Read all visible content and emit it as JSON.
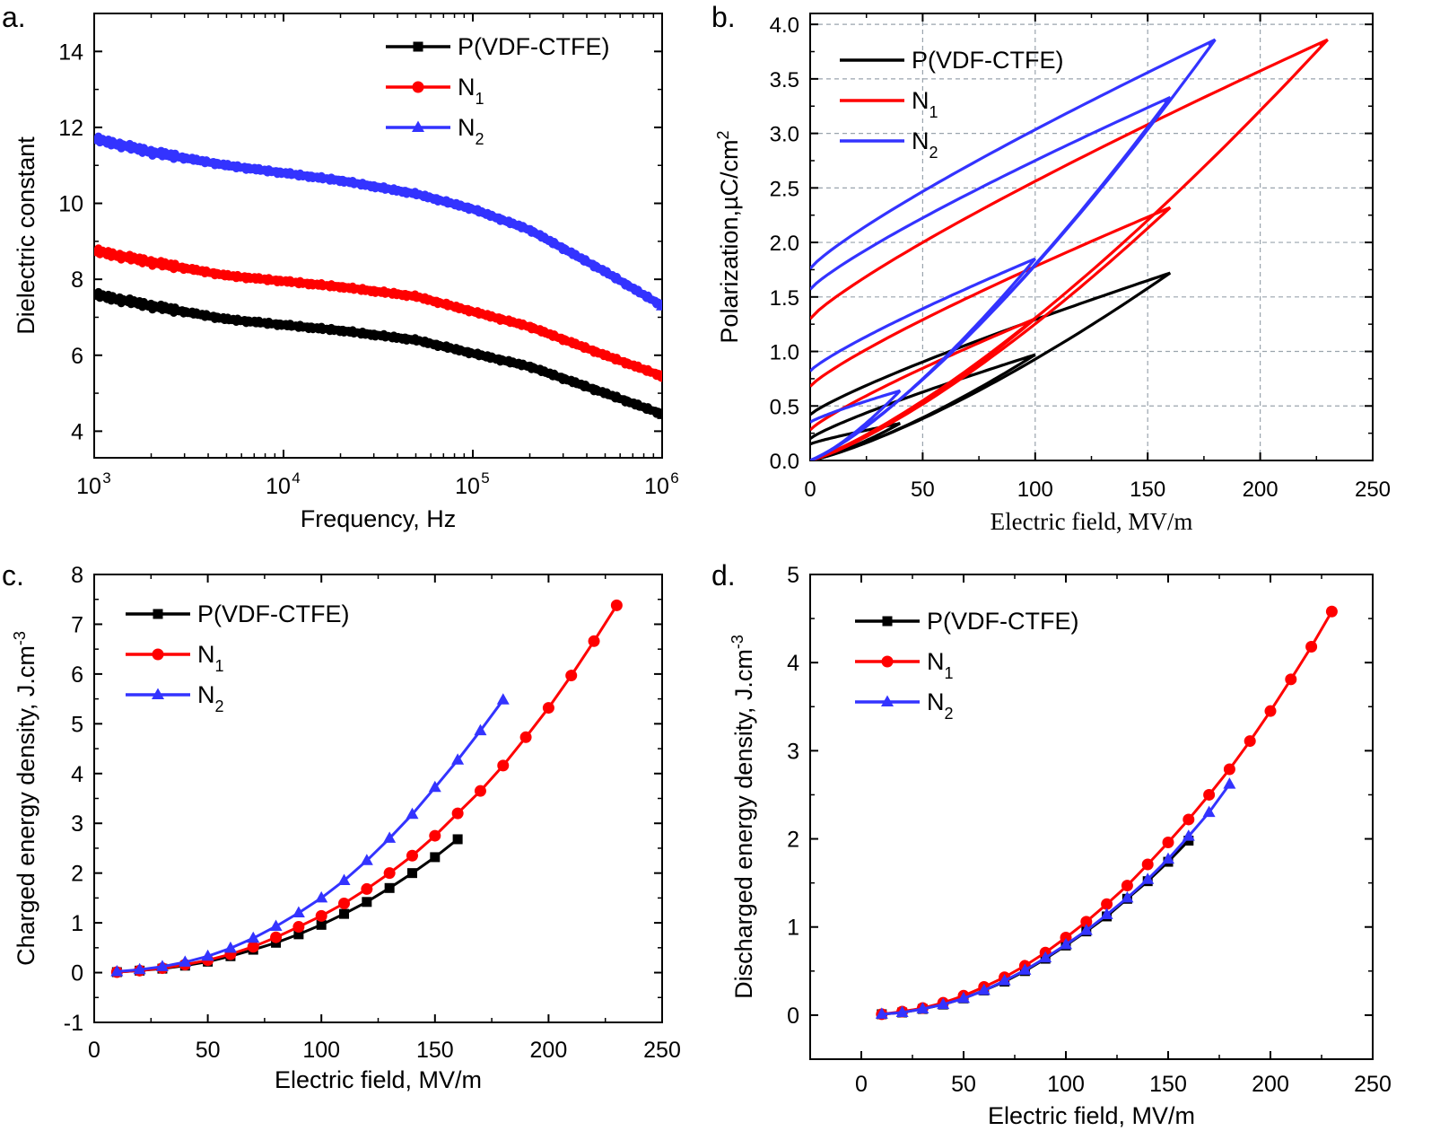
{
  "chart_data": [
    {
      "panel_label": "a.",
      "type": "line",
      "xscale": "log",
      "xlabel": "Frequency, Hz",
      "ylabel": "Dielectric constant",
      "xlim": [
        1000,
        1000000
      ],
      "ylim": [
        3.3,
        15
      ],
      "yticks": [
        "4",
        "6",
        "8",
        "10",
        "12",
        "14"
      ],
      "xticks": [
        {
          "base": "10",
          "exp": "3"
        },
        {
          "base": "10",
          "exp": "4"
        },
        {
          "base": "10",
          "exp": "5"
        },
        {
          "base": "10",
          "exp": "6"
        }
      ],
      "grid": false,
      "legend_position": "top-right",
      "series": [
        {
          "name": "P(VDF-CTFE)",
          "sub": "",
          "color": "#000000",
          "marker": "square",
          "x": [
            1000,
            2000,
            5000,
            10000,
            20000,
            50000,
            100000,
            200000,
            500000,
            1000000
          ],
          "y": [
            7.6,
            7.3,
            6.95,
            6.8,
            6.65,
            6.4,
            6.05,
            5.7,
            5.0,
            4.45
          ]
        },
        {
          "name": "N",
          "sub": "1",
          "color": "#ff0000",
          "marker": "circle",
          "x": [
            1000,
            2000,
            5000,
            10000,
            20000,
            50000,
            100000,
            200000,
            500000,
            1000000
          ],
          "y": [
            8.75,
            8.45,
            8.1,
            7.95,
            7.8,
            7.55,
            7.15,
            6.75,
            6.0,
            5.45
          ]
        },
        {
          "name": "N",
          "sub": "2",
          "color": "#3333ff",
          "marker": "triangle",
          "x": [
            1000,
            2000,
            5000,
            10000,
            20000,
            50000,
            100000,
            200000,
            500000,
            1000000
          ],
          "y": [
            11.7,
            11.35,
            11.0,
            10.8,
            10.6,
            10.25,
            9.85,
            9.3,
            8.2,
            7.3
          ]
        }
      ]
    },
    {
      "panel_label": "b.",
      "type": "line",
      "xlabel": "Electric field, MV/m",
      "ylabel": "Polarization,µC/cm",
      "ylabel_sup": "2",
      "xlim": [
        0,
        250
      ],
      "ylim": [
        0,
        4.1
      ],
      "xticks": [
        "0",
        "50",
        "100",
        "150",
        "200",
        "250"
      ],
      "yticks": [
        "0.0",
        "0.5",
        "1.0",
        "1.5",
        "2.0",
        "2.5",
        "3.0",
        "3.5",
        "4.0"
      ],
      "grid": true,
      "legend_position": "top-left",
      "series": [
        {
          "name": "P(VDF-CTFE)",
          "sub": "",
          "color": "#000000",
          "loops": [
            {
              "emax": 40,
              "pmax": 0.34,
              "pr": 0.15
            },
            {
              "emax": 100,
              "pmax": 0.97,
              "pr": 0.2
            },
            {
              "emax": 160,
              "pmax": 1.72,
              "pr": 0.42
            }
          ]
        },
        {
          "name": "N",
          "sub": "1",
          "color": "#ff0000",
          "loops": [
            {
              "emax": 100,
              "pmax": 1.3,
              "pr": 0.28
            },
            {
              "emax": 160,
              "pmax": 2.32,
              "pr": 0.68
            },
            {
              "emax": 230,
              "pmax": 3.86,
              "pr": 1.3
            }
          ]
        },
        {
          "name": "N",
          "sub": "2",
          "color": "#3333ff",
          "loops": [
            {
              "emax": 40,
              "pmax": 0.64,
              "pr": 0.35
            },
            {
              "emax": 100,
              "pmax": 1.85,
              "pr": 0.82
            },
            {
              "emax": 160,
              "pmax": 3.33,
              "pr": 1.57
            },
            {
              "emax": 180,
              "pmax": 3.86,
              "pr": 1.76
            }
          ]
        }
      ]
    },
    {
      "panel_label": "c.",
      "type": "line",
      "xlabel": "Electric field, MV/m",
      "ylabel": "Charged energy density,  J.cm",
      "ylabel_sup": "-3",
      "xlim": [
        0,
        250
      ],
      "ylim": [
        -1,
        8
      ],
      "xticks": [
        "0",
        "50",
        "100",
        "150",
        "200",
        "250"
      ],
      "yticks": [
        "-1",
        "0",
        "1",
        "2",
        "3",
        "4",
        "5",
        "6",
        "7",
        "8"
      ],
      "grid": false,
      "legend_position": "top-left",
      "series": [
        {
          "name": "P(VDF-CTFE)",
          "sub": "",
          "color": "#000000",
          "marker": "square",
          "x": [
            10,
            20,
            30,
            40,
            50,
            60,
            70,
            80,
            90,
            100,
            110,
            120,
            130,
            140,
            150,
            160
          ],
          "y": [
            0.01,
            0.04,
            0.08,
            0.14,
            0.22,
            0.33,
            0.46,
            0.6,
            0.77,
            0.96,
            1.18,
            1.42,
            1.7,
            2.0,
            2.32,
            2.68
          ]
        },
        {
          "name": "N",
          "sub": "1",
          "color": "#ff0000",
          "marker": "circle",
          "x": [
            10,
            20,
            30,
            40,
            50,
            60,
            70,
            80,
            90,
            100,
            110,
            120,
            130,
            140,
            150,
            160,
            170,
            180,
            190,
            200,
            210,
            220,
            230
          ],
          "y": [
            0.01,
            0.04,
            0.09,
            0.16,
            0.25,
            0.37,
            0.52,
            0.71,
            0.92,
            1.14,
            1.39,
            1.68,
            2.0,
            2.35,
            2.75,
            3.2,
            3.65,
            4.16,
            4.73,
            5.32,
            5.97,
            6.66,
            7.38
          ]
        },
        {
          "name": "N",
          "sub": "2",
          "color": "#3333ff",
          "marker": "triangle",
          "x": [
            10,
            20,
            30,
            40,
            50,
            60,
            70,
            80,
            90,
            100,
            110,
            120,
            130,
            140,
            150,
            160,
            170,
            180
          ],
          "y": [
            0.02,
            0.06,
            0.12,
            0.21,
            0.33,
            0.49,
            0.69,
            0.93,
            1.2,
            1.5,
            1.85,
            2.25,
            2.7,
            3.18,
            3.72,
            4.27,
            4.86,
            5.48
          ]
        }
      ]
    },
    {
      "panel_label": "d.",
      "type": "line",
      "xlabel": "Electric field, MV/m",
      "ylabel": "Discharged energy density,  J.cm",
      "ylabel_sup": "-3",
      "xlim": [
        -25,
        250
      ],
      "ylim": [
        -0.5,
        5
      ],
      "xticks": [
        "0",
        "50",
        "100",
        "150",
        "200",
        "250"
      ],
      "yticks": [
        "0",
        "1",
        "2",
        "3",
        "4",
        "5"
      ],
      "grid": false,
      "legend_position": "top-left",
      "series": [
        {
          "name": "P(VDF-CTFE)",
          "sub": "",
          "color": "#000000",
          "marker": "square",
          "x": [
            10,
            20,
            30,
            40,
            50,
            60,
            70,
            80,
            90,
            100,
            110,
            120,
            130,
            140,
            150,
            160
          ],
          "y": [
            0.01,
            0.03,
            0.07,
            0.12,
            0.19,
            0.28,
            0.38,
            0.5,
            0.64,
            0.79,
            0.95,
            1.12,
            1.32,
            1.52,
            1.74,
            1.98
          ]
        },
        {
          "name": "N",
          "sub": "1",
          "color": "#ff0000",
          "marker": "circle",
          "x": [
            10,
            20,
            30,
            40,
            50,
            60,
            70,
            80,
            90,
            100,
            110,
            120,
            130,
            140,
            150,
            160,
            170,
            180,
            190,
            200,
            210,
            220,
            230
          ],
          "y": [
            0.01,
            0.04,
            0.08,
            0.14,
            0.22,
            0.32,
            0.43,
            0.56,
            0.71,
            0.88,
            1.06,
            1.26,
            1.47,
            1.71,
            1.96,
            2.22,
            2.5,
            2.79,
            3.11,
            3.45,
            3.81,
            4.18,
            4.58
          ]
        },
        {
          "name": "N",
          "sub": "2",
          "color": "#3333ff",
          "marker": "triangle",
          "x": [
            10,
            20,
            30,
            40,
            50,
            60,
            70,
            80,
            90,
            100,
            110,
            120,
            130,
            140,
            150,
            160,
            170,
            180
          ],
          "y": [
            0.01,
            0.03,
            0.07,
            0.12,
            0.19,
            0.28,
            0.39,
            0.51,
            0.65,
            0.8,
            0.96,
            1.14,
            1.33,
            1.54,
            1.77,
            2.03,
            2.3,
            2.62
          ]
        }
      ]
    }
  ]
}
